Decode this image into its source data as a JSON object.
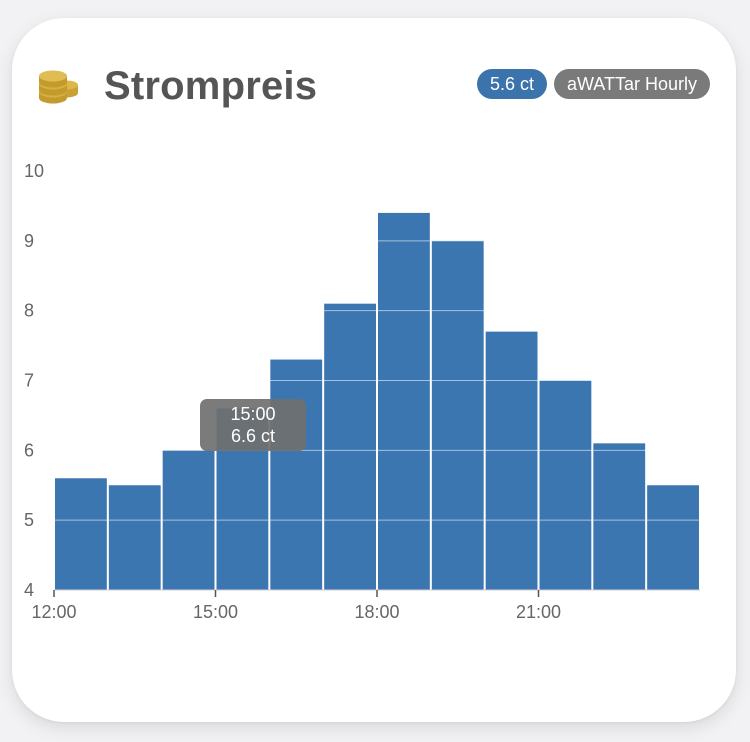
{
  "card": {
    "title": "Strompreis",
    "icon": "coins-icon",
    "badges": [
      {
        "label": "5.6 ct",
        "color": "#3b73ad"
      },
      {
        "label": "aWATTar Hourly",
        "color": "#7a7a7a"
      }
    ]
  },
  "tooltip": {
    "time": "15:00",
    "value": "6.6 ct"
  },
  "chart_data": {
    "type": "bar",
    "categories": [
      "12:00",
      "13:00",
      "14:00",
      "15:00",
      "16:00",
      "17:00",
      "18:00",
      "19:00",
      "20:00",
      "21:00",
      "22:00",
      "23:00"
    ],
    "values": [
      5.6,
      5.5,
      6.0,
      6.6,
      7.3,
      8.1,
      9.4,
      9.0,
      7.7,
      7.0,
      6.1,
      5.5
    ],
    "ylim": [
      4,
      10
    ],
    "yticks": [
      4,
      5,
      6,
      7,
      8,
      9,
      10
    ],
    "xtick_labels": [
      "12:00",
      "15:00",
      "18:00",
      "21:00"
    ],
    "bar_color": "#3b76b0",
    "grid": true,
    "title": "",
    "xlabel": "",
    "ylabel": ""
  }
}
